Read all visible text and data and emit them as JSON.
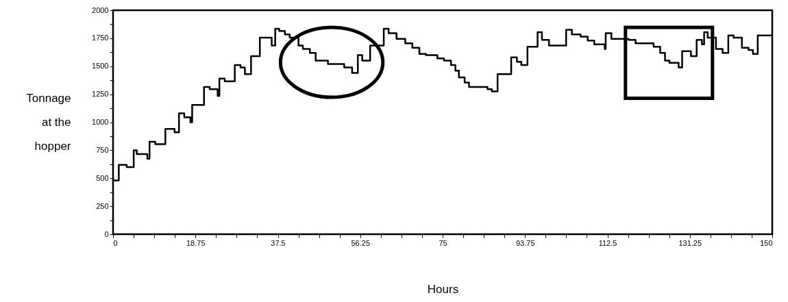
{
  "chart_data": {
    "type": "step",
    "xlabel": "Hours",
    "ylabel": "Tonnage\nat the\nhopper",
    "x": [
      0,
      1.3,
      3.1,
      4.7,
      5.4,
      7.8,
      8.3,
      9.6,
      11.9,
      14.0,
      15.0,
      16.2,
      17.6,
      18.0,
      20.7,
      22.0,
      23.8,
      24.2,
      25.4,
      27.7,
      29.0,
      30.0,
      31.4,
      33.4,
      36.1,
      36.9,
      37.8,
      39.1,
      40.2,
      42.2,
      43.2,
      44.8,
      46.1,
      48.9,
      52.6,
      54.4,
      55.7,
      56.7,
      58.5,
      61.6,
      62.7,
      64.5,
      66.5,
      68.1,
      69.7,
      71.2,
      73.8,
      75.3,
      76.9,
      77.9,
      78.7,
      80.0,
      81.0,
      85.2,
      86.2,
      87.5,
      90.6,
      91.9,
      92.9,
      94.3,
      96.6,
      97.6,
      99.2,
      103.1,
      104.4,
      106.4,
      108.0,
      109.5,
      111.9,
      112.1,
      113.4,
      117.3,
      118.9,
      123.0,
      124.5,
      125.6,
      126.6,
      128.7,
      129.5,
      131.5,
      132.8,
      134.0,
      134.5,
      135.3,
      137.2,
      138.7,
      140.0,
      141.2,
      143.1,
      144.6,
      145.6,
      146.7,
      150
    ],
    "series": [
      {
        "color": "#000000",
        "values": [
          480,
          620,
          600,
          750,
          715,
          675,
          825,
          805,
          940,
          910,
          1080,
          1045,
          1000,
          1155,
          1315,
          1295,
          1235,
          1390,
          1365,
          1510,
          1490,
          1430,
          1590,
          1755,
          1685,
          1835,
          1815,
          1785,
          1755,
          1685,
          1655,
          1620,
          1550,
          1520,
          1490,
          1440,
          1600,
          1550,
          1685,
          1835,
          1795,
          1745,
          1705,
          1665,
          1610,
          1600,
          1570,
          1550,
          1510,
          1460,
          1400,
          1355,
          1315,
          1295,
          1275,
          1430,
          1580,
          1540,
          1510,
          1675,
          1805,
          1735,
          1685,
          1825,
          1785,
          1765,
          1730,
          1695,
          1655,
          1795,
          1745,
          1735,
          1705,
          1675,
          1620,
          1550,
          1530,
          1490,
          1635,
          1590,
          1735,
          1695,
          1805,
          1755,
          1655,
          1620,
          1775,
          1755,
          1665,
          1645,
          1610,
          1775,
          1775
        ]
      }
    ],
    "xlim": [
      0,
      150
    ],
    "xticks": [
      0,
      {
        "value": 4.6875,
        "label": null
      },
      {
        "value": 9.375,
        "label": null
      },
      {
        "value": 14.0625,
        "label": null
      },
      18.75,
      {
        "value": 23.4375,
        "label": null
      },
      {
        "value": 28.125,
        "label": null
      },
      {
        "value": 32.8125,
        "label": null
      },
      37.5,
      {
        "value": 42.1875,
        "label": null
      },
      {
        "value": 46.875,
        "label": null
      },
      {
        "value": 51.5625,
        "label": null
      },
      56.25,
      {
        "value": 60.9375,
        "label": null
      },
      {
        "value": 65.625,
        "label": null
      },
      {
        "value": 70.3125,
        "label": null
      },
      75,
      {
        "value": 79.6875,
        "label": null
      },
      {
        "value": 84.375,
        "label": null
      },
      {
        "value": 89.0625,
        "label": null
      },
      93.75,
      {
        "value": 98.4375,
        "label": null
      },
      {
        "value": 103.125,
        "label": null
      },
      {
        "value": 107.8125,
        "label": null
      },
      112.5,
      {
        "value": 117.1875,
        "label": null
      },
      {
        "value": 121.875,
        "label": null
      },
      {
        "value": 126.5625,
        "label": null
      },
      131.25,
      {
        "value": 135.9375,
        "label": null
      },
      {
        "value": 140.625,
        "label": null
      },
      {
        "value": 145.3125,
        "label": null
      },
      150
    ],
    "ylim": [
      0,
      2000
    ],
    "yticks": [
      0,
      {
        "value": 125,
        "label": null
      },
      250,
      {
        "value": 375,
        "label": null
      },
      500,
      {
        "value": 625,
        "label": null
      },
      750,
      {
        "value": 875,
        "label": null
      },
      1000,
      {
        "value": 1125,
        "label": null
      },
      1250,
      {
        "value": 1375,
        "label": null
      },
      1500,
      {
        "value": 1625,
        "label": null
      },
      1750,
      {
        "value": 1875,
        "label": null
      },
      2000
    ],
    "grid": false,
    "line_style": "solid",
    "marker": "none"
  }
}
